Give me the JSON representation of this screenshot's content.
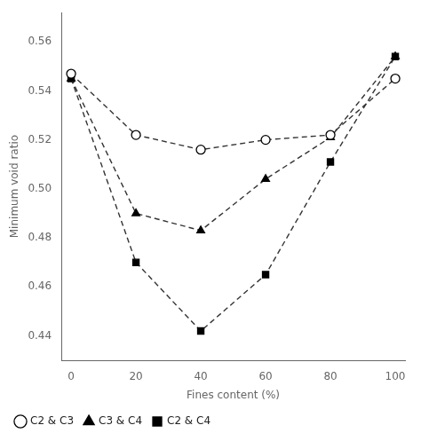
{
  "chart_data": {
    "type": "line",
    "x": [
      0,
      20,
      40,
      60,
      80,
      100
    ],
    "series": [
      {
        "name": "C2 & C3",
        "color": "#333333",
        "marker": "circle",
        "line_style": "dashed",
        "values": [
          0.547,
          0.522,
          0.516,
          0.52,
          0.522,
          0.545
        ]
      },
      {
        "name": "C3 & C4",
        "color": "#333333",
        "marker": "triangle",
        "line_style": "dashed",
        "values": [
          0.545,
          0.49,
          0.483,
          0.504,
          0.521,
          0.554
        ]
      },
      {
        "name": "C2 & C4",
        "color": "#333333",
        "marker": "square",
        "line_style": "dashed",
        "values": [
          0.545,
          0.47,
          0.442,
          0.465,
          0.511,
          0.554
        ]
      }
    ],
    "xlabel": "Fines content (%)",
    "ylabel": "Minimum void ratio",
    "xlim": [
      -3,
      103
    ],
    "ylim": [
      0.43,
      0.572
    ],
    "xticks": [
      0,
      20,
      40,
      60,
      80,
      100
    ],
    "yticks": [
      0.44,
      0.46,
      0.48,
      {
        "value": 0.5,
        "label": "0.50"
      },
      0.52,
      0.54,
      0.56
    ],
    "grid": false,
    "legend": "bottom"
  }
}
